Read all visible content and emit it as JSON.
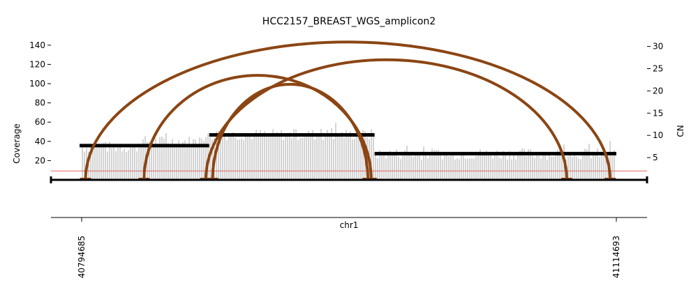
{
  "chart_data": {
    "type": "coverage_breakpoint_plot",
    "title": "HCC2157_BREAST_WGS_amplicon2",
    "chromosome_label": "chr1",
    "left_axis": {
      "label": "Coverage",
      "ylim": [
        0,
        150
      ],
      "ticks": [
        20,
        40,
        60,
        80,
        100,
        120,
        140
      ]
    },
    "right_axis": {
      "label": "CN",
      "ylim": [
        0,
        32
      ],
      "ticks": [
        5,
        10,
        15,
        20,
        25,
        30
      ]
    },
    "x_range": [
      40794685,
      41114693
    ],
    "x_tick_labels": [
      "40794685",
      "41114693"
    ],
    "cn_threshold": 2,
    "segments": [
      {
        "start": 40794685,
        "end": 40871000,
        "cn": 7.7
      },
      {
        "start": 40871000,
        "end": 40970000,
        "cn": 10.1
      },
      {
        "start": 40970000,
        "end": 41114693,
        "cn": 5.9
      }
    ],
    "coverage_profile": [
      {
        "start": 40794685,
        "end": 40830000,
        "mean": 34
      },
      {
        "start": 40830000,
        "end": 40871000,
        "mean": 40
      },
      {
        "start": 40871000,
        "end": 40970000,
        "mean": 47
      },
      {
        "start": 40970000,
        "end": 41114693,
        "mean": 27
      }
    ],
    "breakpoints": [
      {
        "pos1": 40797000,
        "pos2": 41111000,
        "cn": 31
      },
      {
        "pos1": 40832000,
        "pos2": 40968000,
        "cn": 23.5
      },
      {
        "pos1": 40869000,
        "pos2": 41085000,
        "cn": 27
      },
      {
        "pos1": 40873000,
        "pos2": 40966000,
        "cn": 21.5
      }
    ],
    "colors": {
      "segment": "#000000",
      "breakpoint": "#8b4513",
      "coverage": "#a9a9a9",
      "threshold": "#e06666"
    }
  }
}
